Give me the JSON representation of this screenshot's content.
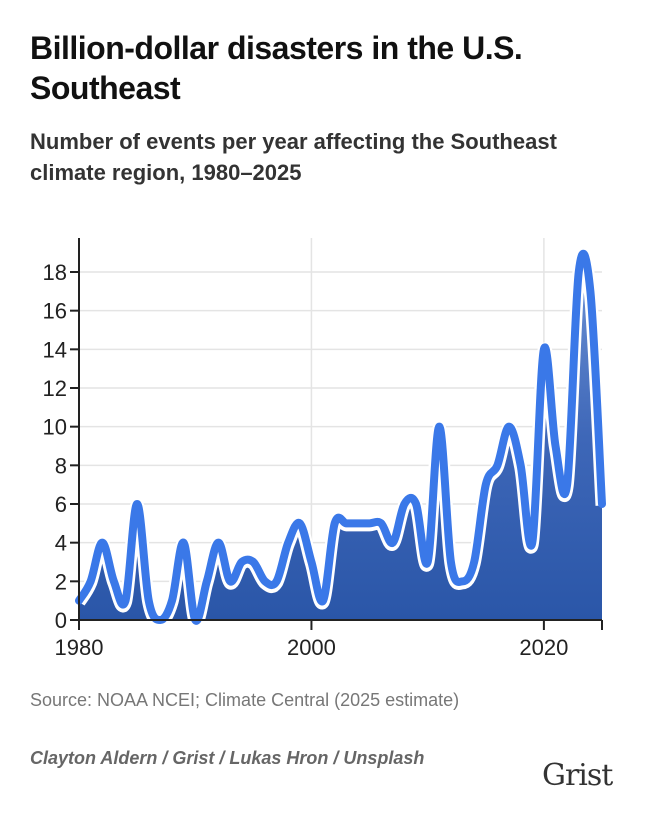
{
  "title": "Billion-dollar disasters in the U.S. Southeast",
  "subtitle": "Number of events per year affecting the Southeast climate region, 1980–2025",
  "source": "Source: NOAA NCEI; Climate Central (2025 estimate)",
  "credit": "Clayton Aldern / Grist / Lukas Hron / Unsplash",
  "logo": "Grist",
  "colors": {
    "line": "#3a78e8",
    "fill_dark": "#2a56a8",
    "fill_light": "#6e93d6"
  },
  "chart_data": {
    "type": "area",
    "xlabel": "",
    "ylabel": "",
    "xlim": [
      1980,
      2025
    ],
    "ylim": [
      0,
      20
    ],
    "x_ticks": [
      "1980",
      "2000",
      "2020"
    ],
    "y_ticks": [
      "0",
      "2",
      "4",
      "6",
      "8",
      "10",
      "12",
      "14",
      "16",
      "18"
    ],
    "grid": true,
    "x": [
      1980,
      1981,
      1982,
      1983,
      1984,
      1985,
      1986,
      1987,
      1988,
      1989,
      1990,
      1991,
      1992,
      1993,
      1994,
      1995,
      1996,
      1997,
      1998,
      1999,
      2000,
      2001,
      2002,
      2003,
      2004,
      2005,
      2006,
      2007,
      2008,
      2009,
      2010,
      2011,
      2012,
      2013,
      2014,
      2015,
      2016,
      2017,
      2018,
      2019,
      2020,
      2021,
      2022,
      2023,
      2024,
      2025
    ],
    "values": [
      1,
      2,
      4,
      2,
      1,
      6,
      1,
      0,
      1,
      4,
      0,
      2,
      4,
      2,
      3,
      3,
      2,
      2,
      4,
      5,
      3,
      1,
      5,
      5,
      5,
      5,
      5,
      4,
      6,
      6,
      3,
      10,
      3,
      2,
      3,
      7,
      8,
      10,
      8,
      4,
      14,
      9,
      7,
      18,
      17,
      6
    ]
  }
}
